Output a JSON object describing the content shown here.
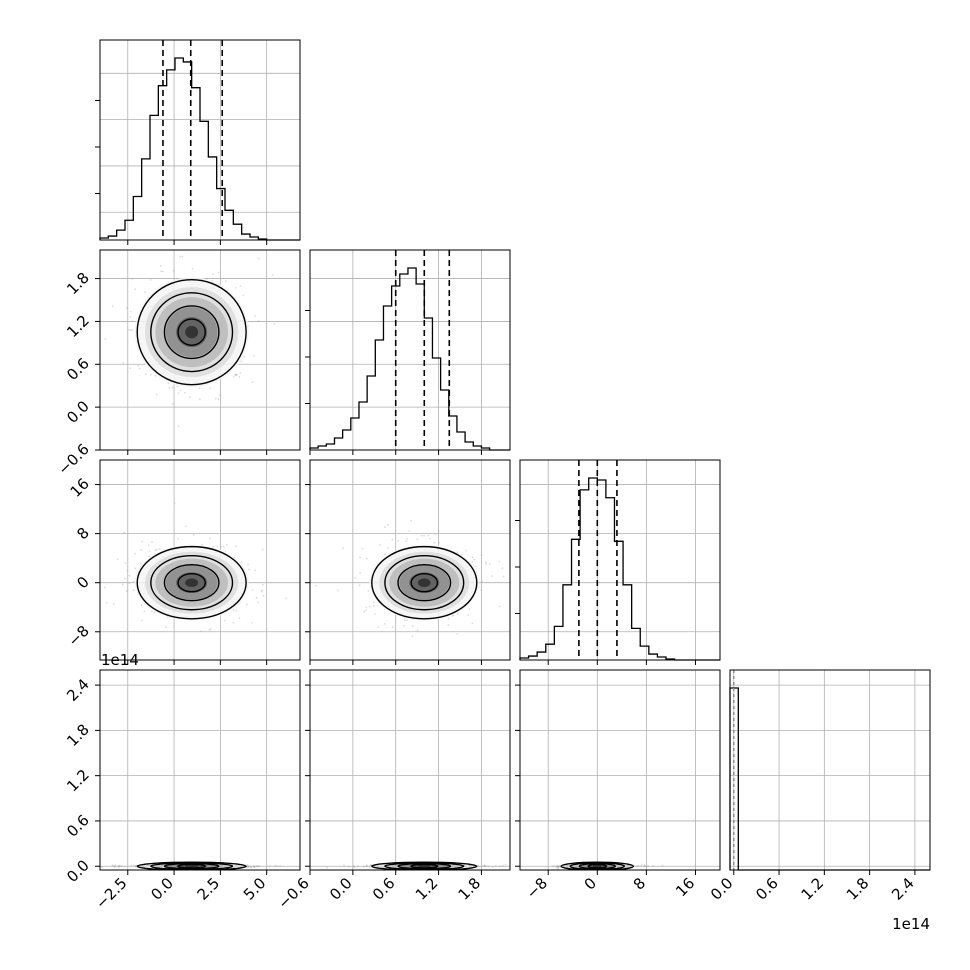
{
  "chart_data": {
    "type": "corner",
    "grid": true,
    "parameters": [
      {
        "ticks": [
          -2.5,
          0.0,
          2.5,
          5.0
        ],
        "tick_labels": [
          "−2.5",
          "0.0",
          "2.5",
          "5.0"
        ],
        "range": [
          -4.0,
          6.8
        ]
      },
      {
        "ticks": [
          -0.6,
          0.0,
          0.6,
          1.2,
          1.8
        ],
        "tick_labels": [
          "−0.6",
          "0.0",
          "0.6",
          "1.2",
          "1.8"
        ],
        "range": [
          -0.6,
          2.2
        ]
      },
      {
        "ticks": [
          -8,
          0,
          8,
          16
        ],
        "tick_labels": [
          "−8",
          "0",
          "8",
          "16"
        ],
        "range": [
          -12.6,
          20
        ]
      },
      {
        "ticks": [
          0.0,
          0.6,
          1.2,
          1.8,
          2.4
        ],
        "tick_labels": [
          "0.0",
          "0.6",
          "1.2",
          "1.8",
          "2.4"
        ],
        "range": [
          -0.05,
          2.6
        ],
        "offset_label": "1e14"
      }
    ],
    "bottom_left_offset_label": "1e14",
    "diagonal_histograms": [
      {
        "bin_edges": [
          -4.0,
          -3.55,
          -3.1,
          -2.65,
          -2.2,
          -1.75,
          -1.3,
          -0.85,
          -0.4,
          0.05,
          0.5,
          0.95,
          1.4,
          1.85,
          2.3,
          2.75,
          3.2,
          3.65,
          4.1,
          4.55,
          5.0,
          5.45,
          5.9,
          6.35,
          6.8
        ],
        "counts": [
          0.01,
          0.02,
          0.05,
          0.1,
          0.22,
          0.41,
          0.63,
          0.78,
          0.86,
          0.92,
          0.9,
          0.77,
          0.6,
          0.42,
          0.26,
          0.15,
          0.08,
          0.03,
          0.015,
          0.005,
          0,
          0,
          0,
          0
        ],
        "quantiles": [
          -0.6,
          0.9,
          2.6
        ]
      },
      {
        "bin_edges": [
          -0.6,
          -0.4857,
          -0.3714,
          -0.2571,
          -0.1429,
          -0.0286,
          0.0857,
          0.2,
          0.3143,
          0.4286,
          0.5429,
          0.6571,
          0.7714,
          0.8857,
          1.0,
          1.1143,
          1.2286,
          1.3429,
          1.4571,
          1.5714,
          1.6857,
          1.8,
          1.9143,
          2.0286,
          2.2
        ],
        "counts": [
          0.01,
          0.02,
          0.03,
          0.06,
          0.1,
          0.16,
          0.24,
          0.37,
          0.55,
          0.72,
          0.82,
          0.88,
          0.91,
          0.83,
          0.66,
          0.46,
          0.3,
          0.17,
          0.09,
          0.04,
          0.02,
          0.01,
          0,
          0
        ],
        "quantiles": [
          0.6,
          1.0,
          1.35
        ]
      },
      {
        "bin_edges": [
          -12.6,
          -11.2,
          -9.8,
          -8.4,
          -7.0,
          -5.6,
          -4.2,
          -2.8,
          -1.4,
          0.0,
          1.4,
          2.8,
          4.2,
          5.6,
          7.0,
          8.4,
          9.8,
          11.2,
          12.6,
          14.0,
          15.4,
          16.8,
          18.2,
          20.0
        ],
        "counts": [
          0.01,
          0.02,
          0.04,
          0.08,
          0.17,
          0.38,
          0.61,
          0.86,
          0.92,
          0.91,
          0.82,
          0.6,
          0.38,
          0.16,
          0.07,
          0.03,
          0.015,
          0.005,
          0,
          0,
          0,
          0,
          0
        ],
        "quantiles": [
          -3.0,
          0.0,
          3.2
        ]
      },
      {
        "bin_edges": [
          -0.05,
          0.06,
          2.6
        ],
        "counts": [
          1.0,
          0.0
        ],
        "quantiles": [
          0.0,
          0.0,
          0.0
        ]
      }
    ],
    "scatter_panels": [
      {
        "row": 1,
        "col": 0,
        "center": [
          0.95,
          1.05
        ],
        "sigma": [
          1.4,
          0.35
        ],
        "contours": [
          0.5,
          1.0,
          1.5,
          2.0
        ]
      },
      {
        "row": 2,
        "col": 0,
        "center": [
          0.95,
          0.0
        ],
        "sigma": [
          1.4,
          2.8
        ],
        "contours": [
          0.5,
          1.0,
          1.5,
          2.0
        ]
      },
      {
        "row": 2,
        "col": 1,
        "center": [
          1.0,
          0.0
        ],
        "sigma": [
          0.35,
          2.8
        ],
        "contours": [
          0.5,
          1.0,
          1.5,
          2.0
        ]
      },
      {
        "row": 3,
        "col": 0,
        "center": [
          0.95,
          0.0
        ],
        "sigma": [
          1.4,
          0.004
        ],
        "contours": [
          0.5,
          1.0,
          1.5,
          2.0
        ]
      },
      {
        "row": 3,
        "col": 1,
        "center": [
          1.0,
          0.0
        ],
        "sigma": [
          0.35,
          0.004
        ],
        "contours": [
          0.5,
          1.0,
          1.5,
          2.0
        ]
      },
      {
        "row": 3,
        "col": 2,
        "center": [
          0.0,
          0.0
        ],
        "sigma": [
          2.8,
          0.004
        ],
        "contours": [
          0.5,
          1.0,
          1.5,
          2.0
        ]
      }
    ],
    "colors": {
      "line": "#000000",
      "grid": "#b0b0b0",
      "point": "#9a9a9a",
      "quantile_line": "#000000",
      "last_hist": "#888888"
    }
  }
}
